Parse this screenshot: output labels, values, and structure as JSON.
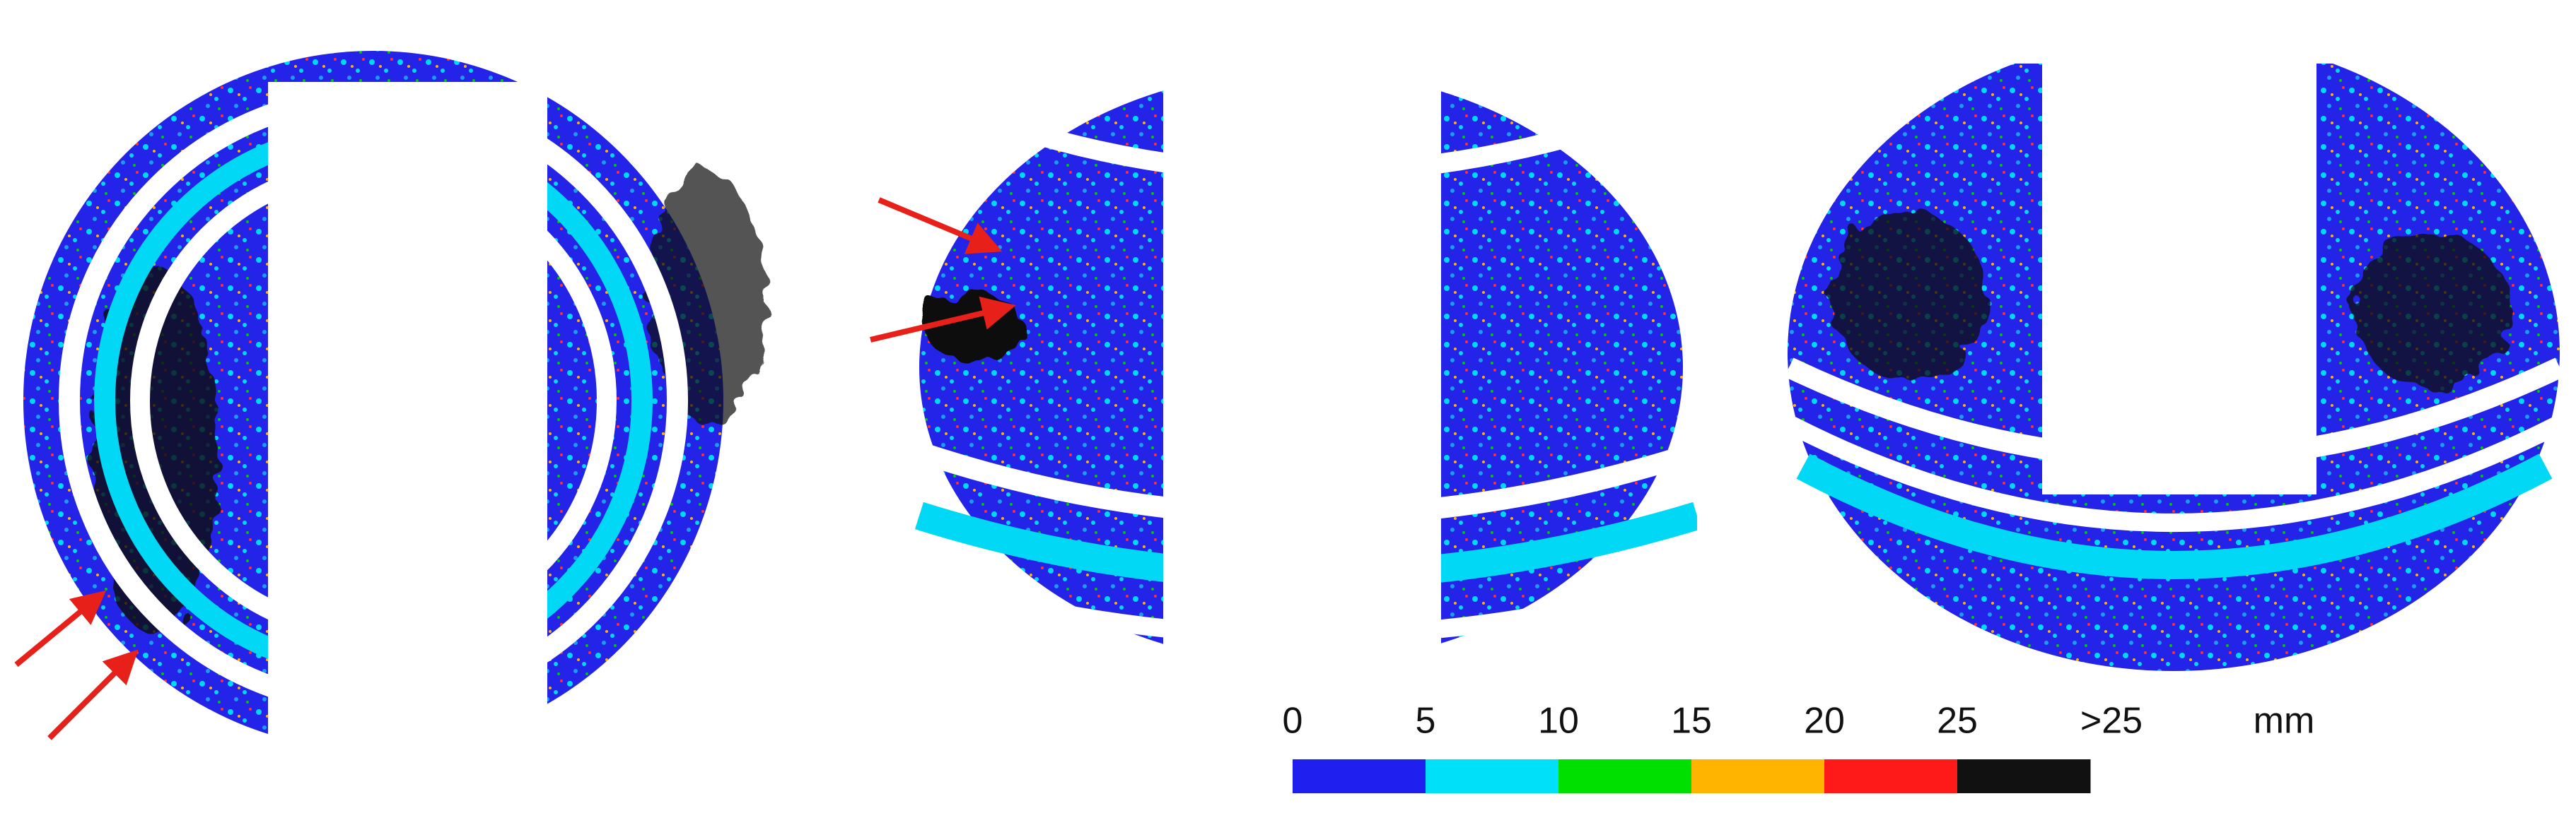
{
  "legend": {
    "labels": [
      "0",
      "5",
      "10",
      "15",
      "20",
      "25",
      ">25"
    ],
    "unit": "mm",
    "colors": [
      "#1f1ff0",
      "#00e0f8",
      "#00e000",
      "#ffb400",
      "#ff1a1a",
      "#111111"
    ]
  }
}
